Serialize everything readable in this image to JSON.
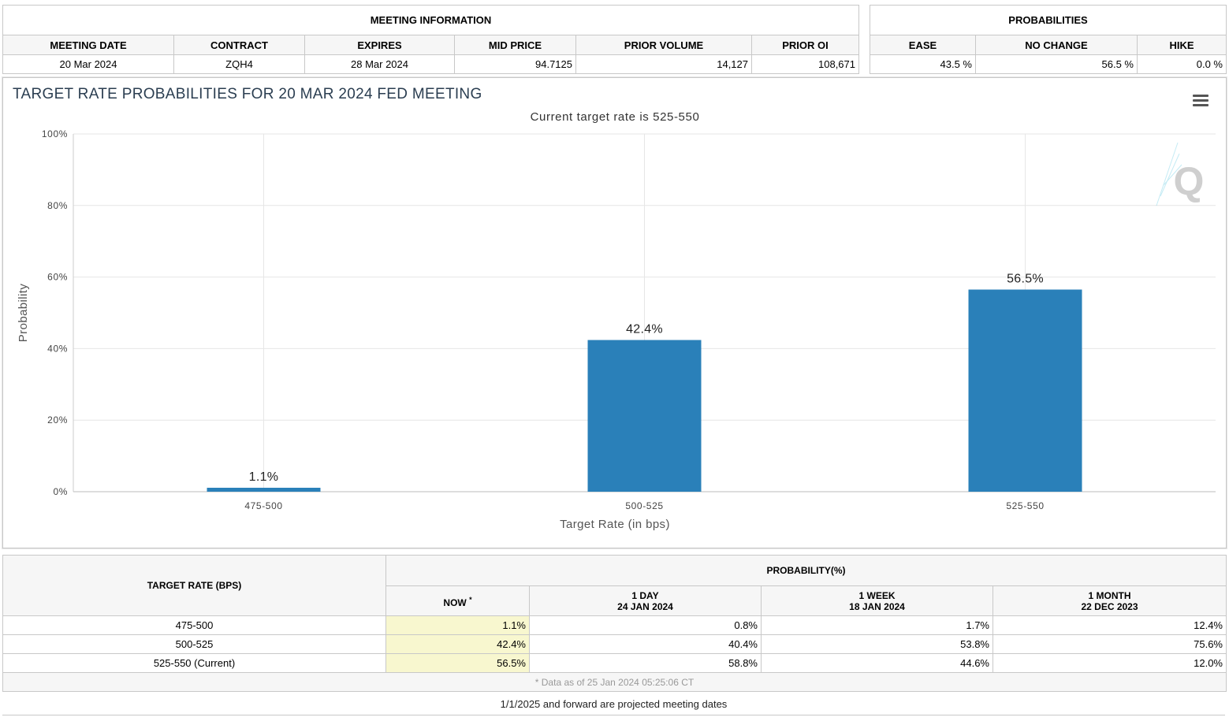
{
  "meeting_info": {
    "group_title": "MEETING INFORMATION",
    "headers": [
      "MEETING DATE",
      "CONTRACT",
      "EXPIRES",
      "MID PRICE",
      "PRIOR VOLUME",
      "PRIOR OI"
    ],
    "values": [
      "20 Mar 2024",
      "ZQH4",
      "28 Mar 2024",
      "94.7125",
      "14,127",
      "108,671"
    ]
  },
  "probabilities": {
    "group_title": "PROBABILITIES",
    "headers": [
      "EASE",
      "NO CHANGE",
      "HIKE"
    ],
    "values": [
      "43.5 %",
      "56.5 %",
      "0.0 %"
    ]
  },
  "chart_data": {
    "type": "bar",
    "title": "TARGET RATE PROBABILITIES FOR 20 MAR 2024 FED MEETING",
    "subtitle": "Current target rate is 525-550",
    "xlabel": "Target Rate (in bps)",
    "ylabel": "Probability",
    "categories": [
      "475-500",
      "500-525",
      "525-550"
    ],
    "values": [
      1.1,
      42.4,
      56.5
    ],
    "data_labels": [
      "1.1%",
      "42.4%",
      "56.5%"
    ],
    "ylim": [
      0,
      100
    ],
    "yticks": [
      "0%",
      "20%",
      "40%",
      "60%",
      "80%",
      "100%"
    ],
    "bar_color": "#2a80b9",
    "grid": true,
    "legend": "none"
  },
  "history": {
    "rate_header": "TARGET RATE (BPS)",
    "prob_header": "PROBABILITY(%)",
    "now_label": "NOW",
    "now_marker": "*",
    "periods": [
      {
        "label": "1 DAY",
        "date": "24 JAN 2024"
      },
      {
        "label": "1 WEEK",
        "date": "18 JAN 2024"
      },
      {
        "label": "1 MONTH",
        "date": "22 DEC 2023"
      }
    ],
    "rows": [
      {
        "rate": "475-500",
        "now": "1.1%",
        "day": "0.8%",
        "week": "1.7%",
        "month": "12.4%"
      },
      {
        "rate": "500-525",
        "now": "42.4%",
        "day": "40.4%",
        "week": "53.8%",
        "month": "75.6%"
      },
      {
        "rate": "525-550 (Current)",
        "now": "56.5%",
        "day": "58.8%",
        "week": "44.6%",
        "month": "12.0%"
      }
    ],
    "data_note": "* Data as of 25 Jan 2024 05:25:06 CT"
  },
  "footer_note": "1/1/2025 and forward are projected meeting dates",
  "icons": {
    "menu": "hamburger-menu-icon",
    "watermark": "quikstrike-q-logo"
  }
}
